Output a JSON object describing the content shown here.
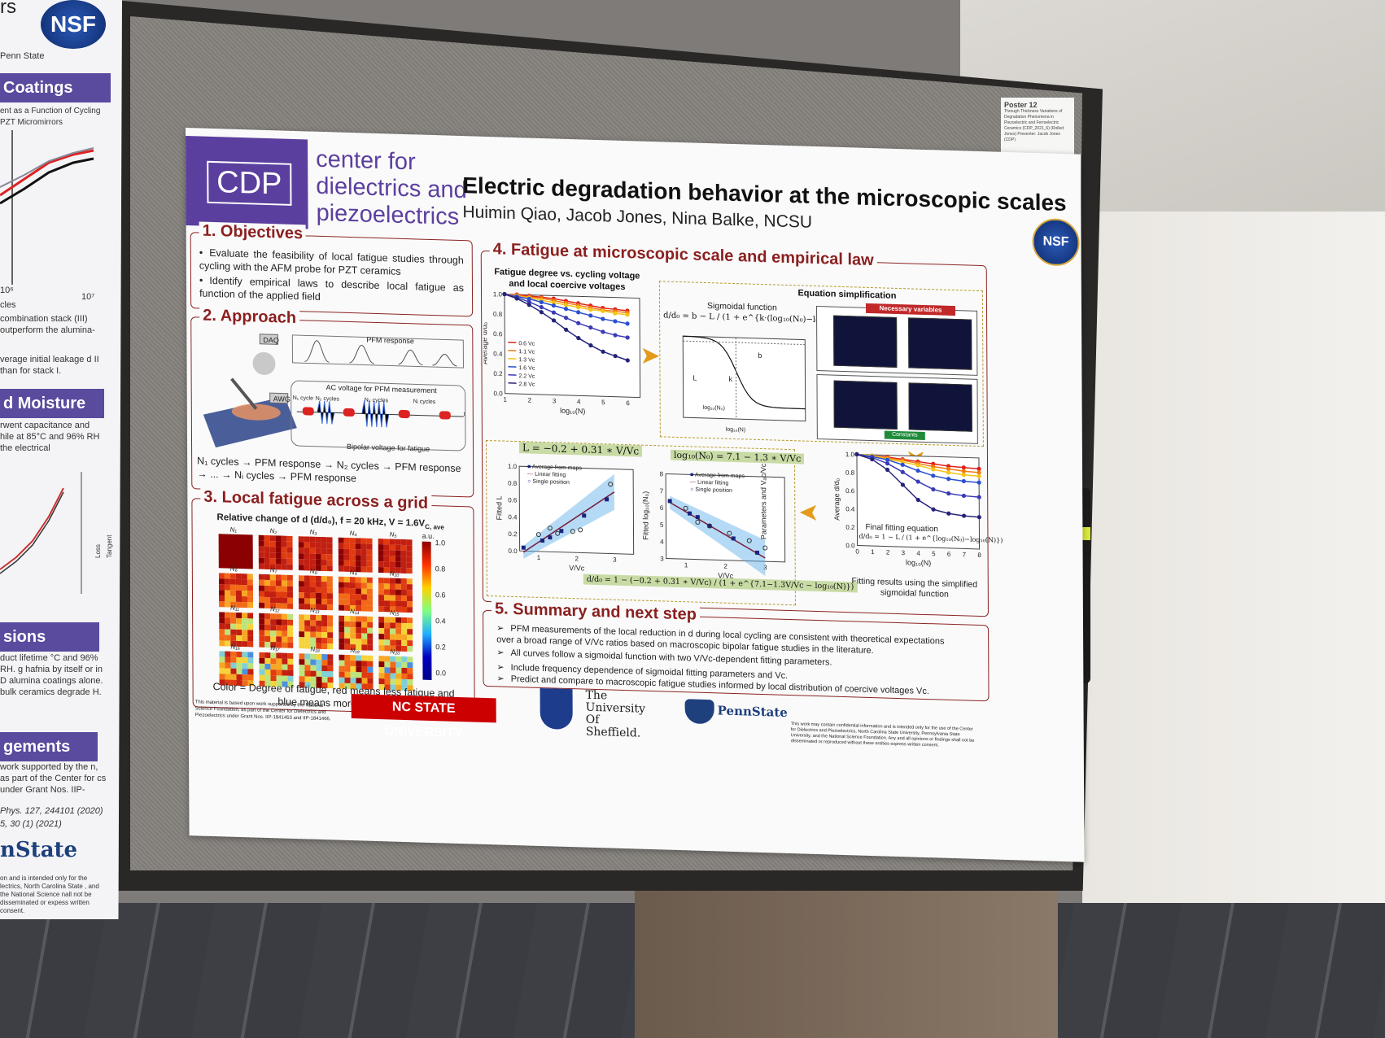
{
  "left_poster": {
    "header_tag": "rs",
    "affiliation": "Penn State",
    "band_coatings": "Coatings",
    "coatings_caption": "ent as a Function of Cycling PZT Micromirrors",
    "axis_tick_a": "10⁶",
    "axis_tick_b": "10⁷",
    "axis_unit": "cles",
    "text_a": "combination stack (III) outperform the alumina-",
    "text_b": "verage initial leakage d II than for stack I.",
    "band_moisture": "d Moisture",
    "text_c": "rwent capacitance and hile at 85°C and 96% RH the electrical",
    "loss_tangent": "Loss Tangent",
    "band_sions": "sions",
    "text_d": "duct lifetime °C and 96% RH. g hafnia by itself or in D alumina coatings alone. bulk ceramics degrade H.",
    "band_gements": "gements",
    "text_e": "work supported by the n, as part of the Center for cs under Grant Nos. IIP-",
    "ref_a": "Phys. 127, 244101 (2020)",
    "ref_b": "5, 30 (1) (2021)",
    "logo_text": "nState",
    "text_f": "on and is intended only for the lectrics, North Carolina State , and the National Science nall not be disseminated or expess written consent."
  },
  "poster_tag": {
    "title": "Poster 12",
    "text": "Through Thickness Variations of Degradation Phenomena in Piezoelectric and Ferroelectric Ceramics (CDP_2021_6) (Rolled Jones) Presenter: Jacob Jones (CDP)"
  },
  "header": {
    "logo_abbr": "CDP",
    "center_name_line1": "center for",
    "center_name_line2": "dielectrics and",
    "center_name_line3": "piezoelectrics",
    "title": "Electric degradation behavior at the microscopic scales",
    "authors": "Huimin Qiao, Jacob Jones, Nina Balke, NCSU",
    "nsf": "NSF"
  },
  "objectives": {
    "heading": "1. Objectives",
    "bullet1": "Evaluate the feasibility of local fatigue studies through cycling with the AFM probe for PZT ceramics",
    "bullet2": "Identify empirical laws to describe local fatigue as function of the applied field"
  },
  "approach": {
    "heading": "2. Approach",
    "pfm_response": "PFM response",
    "daq": "DAQ",
    "awg": "AWG",
    "ac_voltage": "AC voltage for PFM measurement",
    "bipolar": "Bipolar voltage for fatigue",
    "n1_cycle": "N₁ cycle",
    "n2_cycles": "N₂ cycles",
    "n3_cycles": "N₃ cycles",
    "ni_cycles": "Nᵢ cycles",
    "time_axis": "t",
    "sequence_line1": "N₁ cycles → PFM response → N₂ cycles → PFM response",
    "sequence_line2": "→ ... → Nᵢ cycles → PFM response"
  },
  "local_fatigue": {
    "heading": "3. Local fatigue across a grid",
    "subtitle": "Relative change of d (d/d₀), f = 20 kHz, V = 1.6V",
    "subtitle_sub": "C, ave",
    "labels": [
      "N₁",
      "N₂",
      "N₃",
      "N₄",
      "N₅",
      "N₆",
      "N₇",
      "N₈",
      "N₉",
      "N₁₀",
      "N₁₁",
      "N₁₂",
      "N₁₃",
      "N₁₄",
      "N₁₅",
      "N₁₆",
      "N₁₇",
      "N₁₈",
      "N₁₉",
      "N₂₀"
    ],
    "colorbar_unit": "a.u.",
    "colorbar_ticks": [
      "1.0",
      "0.8",
      "0.6",
      "0.4",
      "0.2",
      "0.0"
    ],
    "caption_line1": "Color = Degree of fatigue, red means less fatigue and",
    "caption_line2": "blue means more fatigue"
  },
  "fatigue_law": {
    "heading": "4. Fatigue at microscopic scale and empirical law",
    "chart1_title_line1": "Fatigue degree vs. cycling voltage",
    "chart1_title_line2": "and local coercive voltages",
    "chart1_ylabel": "Average d/d₀",
    "chart1_xlabel": "log₁₀(N)",
    "eq_simplification": "Equation simplification",
    "sigmoidal_function": "Sigmoidal function",
    "sigmoid_eq": "d/d₀ = b − L / (1 + e^{k·(log₁₀(N₀)−log₁₀(N))})",
    "sig_b": "b",
    "sig_k": "k",
    "sig_L": "L",
    "sig_n0": "log₁₀(N₀)",
    "sig_xlabel": "log₁₀(N)",
    "necessary_variables": "Necessary variables",
    "constants": "Constants",
    "eq_L": "L = −0.2 + 0.31 ∗ V/Vᴄ",
    "eq_N0": "log₁₀(N₀) = 7.1 − 1.3 ∗ V/Vᴄ",
    "legend_avg": "Average from maps",
    "legend_fit": "Linear fitting",
    "legend_single": "Single position",
    "fitted_L": "Fitted L",
    "fitted_N0": "Fitted log₁₀(N₀)",
    "vvc": "V/Vᴄ",
    "combined_eq": "d/d₀ = 1 − (−0.2 + 0.31 ∗ V/Vᴄ) / (1 + e^{7.1−1.3V/Vᴄ − log₁₀(N)})",
    "params_ylabel": "Parameters and Vₐᴄ/Vᴄ",
    "chart4_ylabel": "Average d/d₀",
    "final_fitting": "Final fitting equation",
    "final_eq": "d/d₀ = 1 − L / (1 + e^{log₁₀(N₀)−log₁₀(N)})",
    "chart4_xlabel": "log₁₀(N)",
    "chart4_caption_line1": "Fitting results using the simplified",
    "chart4_caption_line2": "sigmoidal function"
  },
  "summary": {
    "heading": "5. Summary and next step",
    "item1": "PFM measurements of the local reduction in d during local cycling are consistent with theoretical expectations over a broad range of V/Vc ratios based on macroscopic bipolar fatigue studies in the literature.",
    "item2": "All curves follow a sigmoidal function with two V/Vᴄ-dependent fitting parameters.",
    "item3": "Include frequency dependence of sigmoidal fitting parameters and Vᴄ.",
    "item4": "Predict and compare to macroscopic fatigue studies informed by local distribution of coercive voltages Vᴄ."
  },
  "footer": {
    "nsf_note": "This material is based upon work supported by the National Science Foundation, as part of the Center for Dielectrics and Piezoelectrics under Grant Nos. IIP-1841453 and IIP-1841466.",
    "ncstate": "NC STATE UNIVERSITY",
    "sheffield_line1": "The",
    "sheffield_line2": "University",
    "sheffield_line3": "Of",
    "sheffield_line4": "Sheffield.",
    "pennstate": "PennState",
    "confidential": "This work may contain confidential information and is intended only for the use of the Center for Dielectrics and Piezoelectrics, North Carolina State University, Pennsylvania State University, and the National Science Foundation. Any and all opinions or findings shall not be disseminated or reproduced without these entities express written consent."
  },
  "chart_data": [
    {
      "type": "line",
      "title": "Fatigue degree vs. cycling voltage and local coercive voltages",
      "xlabel": "log₁₀(N)",
      "ylabel": "Average d/d₀",
      "xlim": [
        1,
        6.5
      ],
      "ylim": [
        0,
        1.0
      ],
      "x_ticks": [
        "1",
        "2",
        "3",
        "4",
        "5",
        "6"
      ],
      "y_ticks": [
        "0.0",
        "0.2",
        "0.4",
        "0.6",
        "0.8",
        "1.0"
      ],
      "legend": "left",
      "x": [
        1.0,
        1.5,
        2.0,
        2.5,
        3.0,
        3.5,
        4.0,
        4.5,
        5.0,
        5.5,
        6.0
      ],
      "series": [
        {
          "name": "0.6 Vᴄ",
          "color": "#e0201a",
          "values": [
            1.0,
            1.0,
            0.99,
            0.98,
            0.97,
            0.95,
            0.93,
            0.91,
            0.89,
            0.88,
            0.87
          ]
        },
        {
          "name": "1.1 Vᴄ",
          "color": "#f07a10",
          "values": [
            1.0,
            0.99,
            0.98,
            0.97,
            0.95,
            0.93,
            0.91,
            0.89,
            0.87,
            0.86,
            0.85
          ]
        },
        {
          "name": "1.3 Vᴄ",
          "color": "#f3c316",
          "values": [
            1.0,
            0.99,
            0.97,
            0.95,
            0.93,
            0.91,
            0.89,
            0.87,
            0.86,
            0.84,
            0.83
          ]
        },
        {
          "name": "1.6 Vᴄ",
          "color": "#2a4fd0",
          "values": [
            1.0,
            0.98,
            0.96,
            0.93,
            0.9,
            0.87,
            0.84,
            0.81,
            0.78,
            0.76,
            0.74
          ]
        },
        {
          "name": "2.2 Vᴄ",
          "color": "#3a3ab8",
          "values": [
            1.0,
            0.97,
            0.93,
            0.88,
            0.83,
            0.78,
            0.73,
            0.69,
            0.65,
            0.62,
            0.6
          ]
        },
        {
          "name": "2.8 Vᴄ",
          "color": "#24247a",
          "values": [
            1.0,
            0.96,
            0.9,
            0.83,
            0.75,
            0.66,
            0.58,
            0.51,
            0.45,
            0.41,
            0.37
          ]
        }
      ]
    },
    {
      "type": "scatter",
      "title": "L = −0.2 + 0.31 ∗ V/Vᴄ",
      "xlabel": "V/Vᴄ",
      "ylabel": "Fitted L",
      "xlim": [
        0.5,
        3.5
      ],
      "ylim": [
        0,
        1.0
      ],
      "x_ticks": [
        "1",
        "2",
        "3"
      ],
      "y_ticks": [
        "0.0",
        "0.2",
        "0.4",
        "0.6",
        "0.8",
        "1.0"
      ],
      "series": [
        {
          "name": "Average from maps",
          "x": [
            0.6,
            1.1,
            1.3,
            1.6,
            2.2,
            2.8
          ],
          "y": [
            0.04,
            0.13,
            0.17,
            0.25,
            0.44,
            0.64
          ]
        },
        {
          "name": "Linear fitting",
          "x": [
            0.6,
            3.0
          ],
          "y": [
            -0.014,
            0.73
          ]
        },
        {
          "name": "Single position",
          "x": [
            1.0,
            1.3,
            1.5,
            1.9,
            2.1,
            2.9
          ],
          "y": [
            0.2,
            0.28,
            0.22,
            0.25,
            0.27,
            0.82
          ]
        }
      ]
    },
    {
      "type": "scatter",
      "title": "log₁₀(N₀) = 7.1 − 1.3 ∗ V/Vᴄ",
      "xlabel": "V/Vᴄ",
      "ylabel": "Fitted log₁₀(N₀)",
      "xlim": [
        0.5,
        3.5
      ],
      "ylim": [
        3,
        8
      ],
      "x_ticks": [
        "1",
        "2",
        "3"
      ],
      "y_ticks": [
        "3",
        "4",
        "5",
        "6",
        "7",
        "8"
      ],
      "series": [
        {
          "name": "Average from maps",
          "x": [
            0.6,
            1.1,
            1.3,
            1.6,
            2.2,
            2.8
          ],
          "y": [
            6.4,
            5.7,
            5.5,
            5.0,
            4.3,
            3.5
          ]
        },
        {
          "name": "Linear fitting",
          "x": [
            0.6,
            3.0
          ],
          "y": [
            6.32,
            3.2
          ]
        },
        {
          "name": "Single position",
          "x": [
            1.0,
            1.3,
            1.6,
            2.1,
            2.6,
            3.0
          ],
          "y": [
            6.0,
            5.2,
            5.0,
            4.6,
            4.2,
            3.8
          ]
        }
      ]
    },
    {
      "type": "line",
      "title": "Fitting results using the simplified sigmoidal function",
      "xlabel": "log₁₀(N)",
      "ylabel": "Average d/d₀",
      "xlim": [
        0,
        8
      ],
      "ylim": [
        0,
        1.0
      ],
      "x_ticks": [
        "0",
        "1",
        "2",
        "3",
        "4",
        "5",
        "6",
        "7",
        "8"
      ],
      "y_ticks": [
        "0.0",
        "0.2",
        "0.4",
        "0.6",
        "0.8",
        "1.0"
      ],
      "x": [
        0,
        1,
        2,
        3,
        4,
        5,
        6,
        7,
        8
      ],
      "series": [
        {
          "name": "0.6 Vᴄ",
          "color": "#e0201a",
          "values": [
            1.0,
            0.99,
            0.98,
            0.96,
            0.94,
            0.92,
            0.9,
            0.89,
            0.88
          ]
        },
        {
          "name": "1.1 Vᴄ",
          "color": "#f07a10",
          "values": [
            1.0,
            0.99,
            0.97,
            0.95,
            0.92,
            0.89,
            0.87,
            0.85,
            0.84
          ]
        },
        {
          "name": "1.3 Vᴄ",
          "color": "#f3c316",
          "values": [
            1.0,
            0.99,
            0.96,
            0.93,
            0.9,
            0.86,
            0.83,
            0.81,
            0.8
          ]
        },
        {
          "name": "1.6 Vᴄ",
          "color": "#2a4fd0",
          "values": [
            1.0,
            0.98,
            0.95,
            0.9,
            0.84,
            0.79,
            0.76,
            0.74,
            0.73
          ]
        },
        {
          "name": "2.2 Vᴄ",
          "color": "#3a3ab8",
          "values": [
            1.0,
            0.97,
            0.91,
            0.82,
            0.72,
            0.64,
            0.6,
            0.58,
            0.57
          ]
        },
        {
          "name": "2.8 Vᴄ",
          "color": "#24247a",
          "values": [
            1.0,
            0.95,
            0.84,
            0.68,
            0.52,
            0.42,
            0.38,
            0.36,
            0.35
          ]
        }
      ]
    }
  ]
}
